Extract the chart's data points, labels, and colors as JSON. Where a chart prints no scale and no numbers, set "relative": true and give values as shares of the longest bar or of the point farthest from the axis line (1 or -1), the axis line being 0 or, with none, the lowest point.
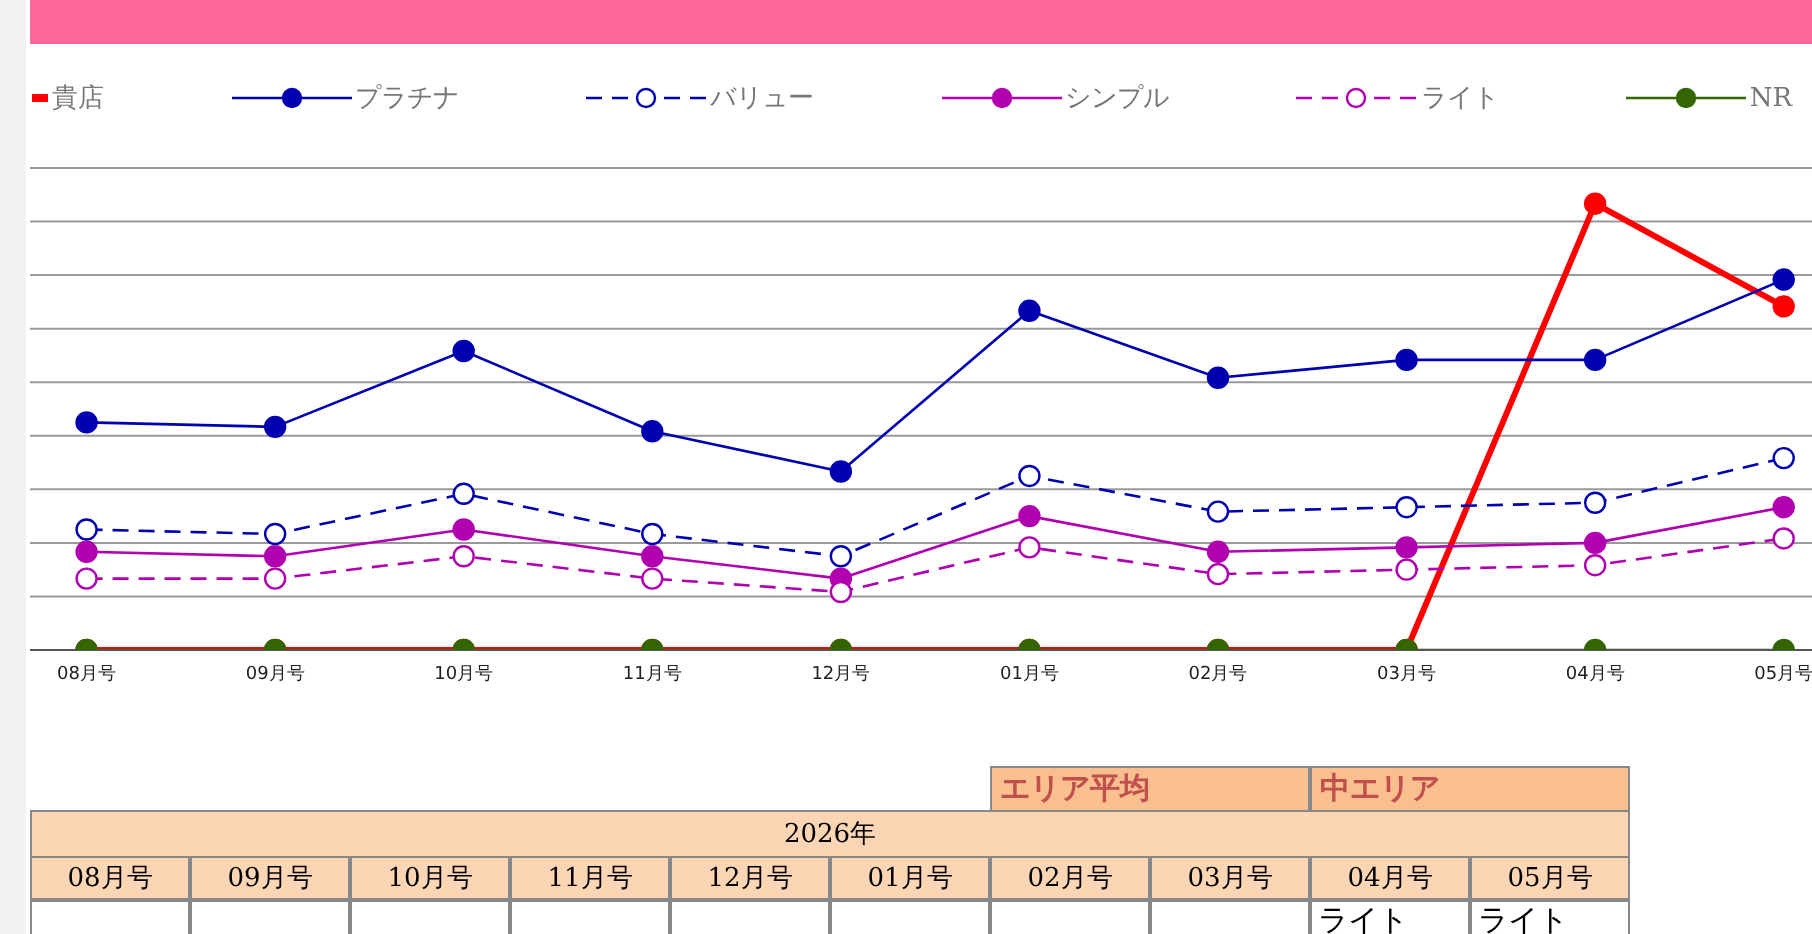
{
  "chart_data": {
    "type": "line",
    "relative": true,
    "categories": [
      "08月号",
      "09月号",
      "10月号",
      "11月号",
      "12月号",
      "01月号",
      "02月号",
      "03月号",
      "04月号",
      "05月号"
    ],
    "series": [
      {
        "name": "貴店",
        "color": "#ff0000",
        "line_style": "solid",
        "values": [
          0,
          0,
          0,
          0,
          0,
          0,
          0,
          0,
          1,
          0.77
        ]
      },
      {
        "name": "プラチナ",
        "color": "#0000b0",
        "line_style": "solid",
        "values": [
          0.51,
          0.5,
          0.67,
          0.49,
          0.4,
          0.76,
          0.61,
          0.65,
          0.65,
          0.83
        ]
      },
      {
        "name": "バリュー",
        "color": "#0000b0",
        "line_style": "dashed",
        "values": [
          0.27,
          0.26,
          0.35,
          0.26,
          0.21,
          0.39,
          0.31,
          0.32,
          0.33,
          0.43
        ]
      },
      {
        "name": "シンプル",
        "color": "#b000b0",
        "line_style": "solid",
        "values": [
          0.22,
          0.21,
          0.27,
          0.21,
          0.16,
          0.3,
          0.22,
          0.23,
          0.24,
          0.32
        ]
      },
      {
        "name": "ライト",
        "color": "#b000b0",
        "line_style": "dashed",
        "values": [
          0.16,
          0.16,
          0.21,
          0.16,
          0.13,
          0.23,
          0.17,
          0.18,
          0.19,
          0.25
        ]
      },
      {
        "name": "NR",
        "color": "#336600",
        "line_style": "solid",
        "values": [
          0,
          0,
          0,
          0,
          0,
          0,
          0,
          0,
          0,
          0
        ]
      }
    ],
    "marker": "circle",
    "grid": "y",
    "legend": "top",
    "annotations": [
      "エリア平均",
      "中エリア",
      "2026年",
      "ライト",
      "ライト"
    ]
  }
}
